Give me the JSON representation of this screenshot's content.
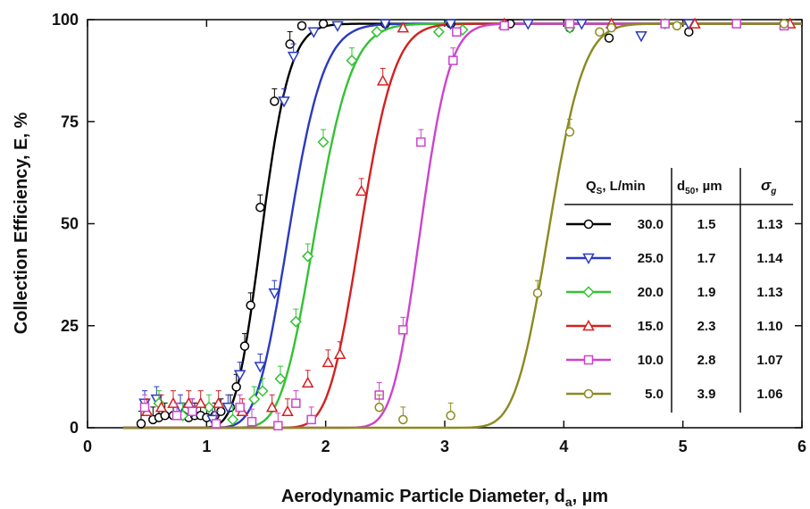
{
  "chart_data": {
    "type": "scatter",
    "xlabel_main": "Aerodynamic Particle Diameter, d",
    "xlabel_sub": "a",
    "xlabel_unit": ", µm",
    "ylabel": "Collection Efficiency, E, %",
    "xlim": [
      0,
      6
    ],
    "ylim": [
      0,
      100
    ],
    "xticks": [
      "0",
      "1",
      "2",
      "3",
      "4",
      "5",
      "6"
    ],
    "yticks": [
      "0",
      "25",
      "50",
      "75",
      "100"
    ],
    "legend": {
      "position": "right",
      "headers": {
        "qs_main": "Q",
        "qs_sub": "S",
        "qs_rest": ", L/min",
        "d50_main": "d",
        "d50_sub": "50",
        "d50_rest": ", µm",
        "sigma_main": "σ",
        "sigma_sub": "g"
      }
    },
    "series": [
      {
        "qs": "30.0",
        "d50": "1.5",
        "sigma": "1.13",
        "d50_value": 1.47,
        "sigma_value": 1.13,
        "color": "#000000",
        "marker": "circle",
        "points": [
          [
            0.45,
            1
          ],
          [
            0.55,
            2
          ],
          [
            0.6,
            2.5
          ],
          [
            0.65,
            3
          ],
          [
            0.72,
            3
          ],
          [
            0.8,
            3
          ],
          [
            0.85,
            2.5
          ],
          [
            0.9,
            3
          ],
          [
            0.95,
            3
          ],
          [
            1.0,
            2.5
          ],
          [
            1.07,
            3
          ],
          [
            1.12,
            4
          ],
          [
            1.2,
            5
          ],
          [
            1.25,
            10
          ],
          [
            1.32,
            20
          ],
          [
            1.37,
            30
          ],
          [
            1.45,
            54
          ],
          [
            1.57,
            80
          ],
          [
            1.7,
            94
          ],
          [
            1.8,
            98.5
          ],
          [
            1.98,
            99
          ],
          [
            2.5,
            99
          ],
          [
            3.05,
            99
          ],
          [
            3.55,
            99
          ],
          [
            4.05,
            98
          ],
          [
            4.38,
            95.5
          ],
          [
            5.05,
            97
          ]
        ]
      },
      {
        "qs": "25.0",
        "d50": "1.7",
        "sigma": "1.14",
        "d50_value": 1.7,
        "sigma_value": 1.14,
        "color": "#2a3ac0",
        "marker": "triangle-down",
        "points": [
          [
            0.48,
            6
          ],
          [
            0.58,
            7
          ],
          [
            0.78,
            5
          ],
          [
            0.88,
            4
          ],
          [
            1.05,
            2
          ],
          [
            1.18,
            5
          ],
          [
            1.28,
            13
          ],
          [
            1.45,
            15
          ],
          [
            1.57,
            33
          ],
          [
            1.65,
            80
          ],
          [
            1.73,
            91
          ],
          [
            1.9,
            97
          ],
          [
            2.1,
            98.5
          ],
          [
            2.5,
            99
          ],
          [
            3.05,
            99
          ],
          [
            3.7,
            99
          ],
          [
            4.15,
            99
          ],
          [
            4.65,
            96
          ],
          [
            5.05,
            99
          ]
        ]
      },
      {
        "qs": "20.0",
        "d50": "1.9",
        "sigma": "1.13",
        "d50_value": 1.92,
        "sigma_value": 1.13,
        "color": "#33c233",
        "marker": "diamond",
        "points": [
          [
            0.6,
            6
          ],
          [
            0.8,
            3
          ],
          [
            1.02,
            5
          ],
          [
            1.22,
            2
          ],
          [
            1.4,
            7
          ],
          [
            1.47,
            9
          ],
          [
            1.62,
            12
          ],
          [
            1.75,
            26
          ],
          [
            1.85,
            42
          ],
          [
            1.98,
            70
          ],
          [
            2.22,
            90
          ],
          [
            2.43,
            97
          ],
          [
            2.95,
            97
          ],
          [
            3.15,
            97.5
          ],
          [
            4.05,
            98
          ],
          [
            4.85,
            99
          ]
        ]
      },
      {
        "qs": "15.0",
        "d50": "2.3",
        "sigma": "1.10",
        "d50_value": 2.3,
        "sigma_value": 1.1,
        "color": "#d42020",
        "marker": "triangle-up",
        "points": [
          [
            0.5,
            4
          ],
          [
            0.62,
            5
          ],
          [
            0.72,
            6
          ],
          [
            0.85,
            6
          ],
          [
            0.95,
            6
          ],
          [
            1.1,
            6
          ],
          [
            1.3,
            4
          ],
          [
            1.55,
            5
          ],
          [
            1.68,
            4
          ],
          [
            1.85,
            11
          ],
          [
            2.02,
            16
          ],
          [
            2.12,
            18
          ],
          [
            2.3,
            58
          ],
          [
            2.48,
            85
          ],
          [
            2.65,
            98
          ],
          [
            3.5,
            99
          ],
          [
            4.4,
            99
          ],
          [
            5.1,
            99
          ],
          [
            5.9,
            99
          ]
        ]
      },
      {
        "qs": "10.0",
        "d50": "2.8",
        "sigma": "1.07",
        "d50_value": 2.8,
        "sigma_value": 1.07,
        "color": "#cc44cc",
        "marker": "square",
        "points": [
          [
            0.48,
            5
          ],
          [
            0.75,
            3
          ],
          [
            0.88,
            4
          ],
          [
            1.08,
            1
          ],
          [
            1.28,
            5
          ],
          [
            1.38,
            1.5
          ],
          [
            1.6,
            0.5
          ],
          [
            1.75,
            6
          ],
          [
            1.88,
            2
          ],
          [
            2.45,
            8
          ],
          [
            2.65,
            24
          ],
          [
            2.8,
            70
          ],
          [
            3.07,
            90
          ],
          [
            3.1,
            97
          ],
          [
            3.5,
            98.5
          ],
          [
            4.05,
            99
          ],
          [
            4.85,
            99
          ],
          [
            5.45,
            99
          ],
          [
            5.85,
            98.5
          ]
        ]
      },
      {
        "qs": "5.0",
        "d50": "3.9",
        "sigma": "1.06",
        "d50_value": 3.88,
        "sigma_value": 1.06,
        "color": "#8a8a1e",
        "marker": "circle",
        "points": [
          [
            2.45,
            5
          ],
          [
            2.65,
            2
          ],
          [
            3.05,
            3
          ],
          [
            3.78,
            33
          ],
          [
            4.05,
            72.5
          ],
          [
            4.3,
            97
          ],
          [
            4.4,
            98
          ],
          [
            4.95,
            98.5
          ],
          [
            5.85,
            99
          ]
        ]
      }
    ]
  }
}
